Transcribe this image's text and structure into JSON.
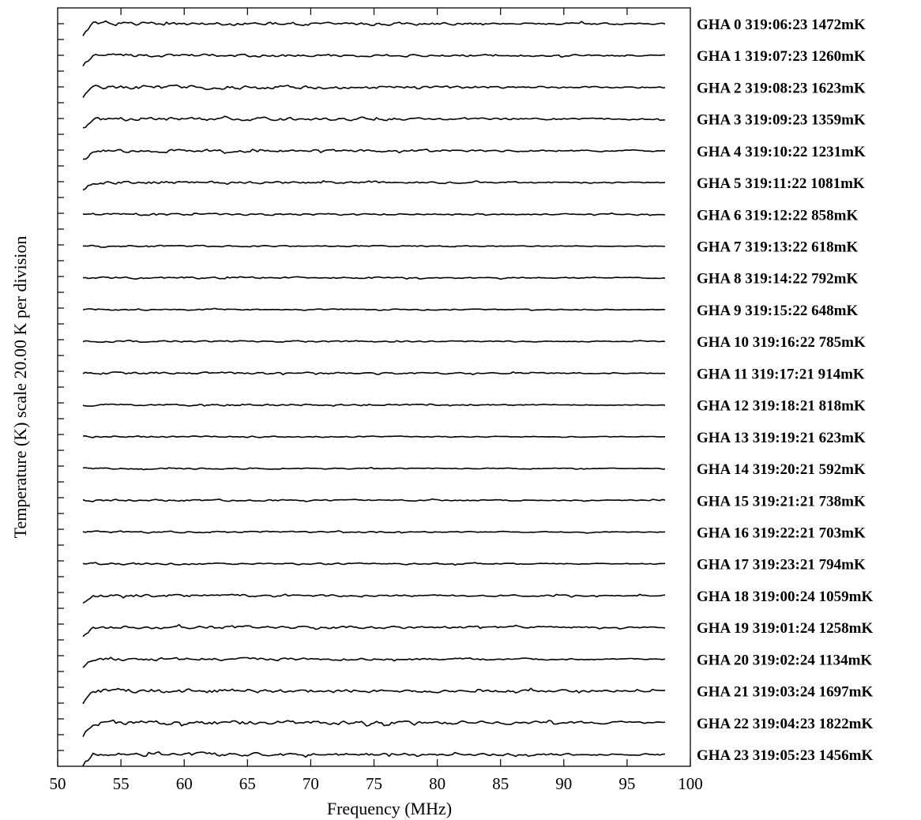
{
  "chart_data": {
    "type": "line",
    "xlabel": "Frequency (MHz)",
    "ylabel": "Temperature (K) scale  20.00 K per division",
    "xlim": [
      50,
      100
    ],
    "x_ticks": [
      50,
      55,
      60,
      65,
      70,
      75,
      80,
      85,
      90,
      95,
      100
    ],
    "x_tick_labels": [
      "50",
      "55",
      "60",
      "65",
      "70",
      "75",
      "80",
      "85",
      "90",
      "95",
      "100"
    ],
    "data_x_range": [
      52,
      98
    ],
    "y_scale_per_division_K": 20.0,
    "y_axis_tick_divisions": 48,
    "grid": false,
    "legend": "none",
    "series": [
      {
        "label": "GHA  0 319:06:23 1472mK",
        "gha": 0,
        "rms_mK": 1472
      },
      {
        "label": "GHA  1 319:07:23 1260mK",
        "gha": 1,
        "rms_mK": 1260
      },
      {
        "label": "GHA  2 319:08:23 1623mK",
        "gha": 2,
        "rms_mK": 1623
      },
      {
        "label": "GHA  3 319:09:23 1359mK",
        "gha": 3,
        "rms_mK": 1359
      },
      {
        "label": "GHA  4 319:10:22 1231mK",
        "gha": 4,
        "rms_mK": 1231
      },
      {
        "label": "GHA  5 319:11:22 1081mK",
        "gha": 5,
        "rms_mK": 1081
      },
      {
        "label": "GHA  6 319:12:22  858mK",
        "gha": 6,
        "rms_mK": 858
      },
      {
        "label": "GHA  7 319:13:22  618mK",
        "gha": 7,
        "rms_mK": 618
      },
      {
        "label": "GHA  8 319:14:22  792mK",
        "gha": 8,
        "rms_mK": 792
      },
      {
        "label": "GHA  9 319:15:22  648mK",
        "gha": 9,
        "rms_mK": 648
      },
      {
        "label": "GHA 10 319:16:22  785mK",
        "gha": 10,
        "rms_mK": 785
      },
      {
        "label": "GHA 11 319:17:21  914mK",
        "gha": 11,
        "rms_mK": 914
      },
      {
        "label": "GHA 12 319:18:21  818mK",
        "gha": 12,
        "rms_mK": 818
      },
      {
        "label": "GHA 13 319:19:21  623mK",
        "gha": 13,
        "rms_mK": 623
      },
      {
        "label": "GHA 14 319:20:21  592mK",
        "gha": 14,
        "rms_mK": 592
      },
      {
        "label": "GHA 15 319:21:21  738mK",
        "gha": 15,
        "rms_mK": 738
      },
      {
        "label": "GHA 16 319:22:21  703mK",
        "gha": 16,
        "rms_mK": 703
      },
      {
        "label": "GHA 17 319:23:21  794mK",
        "gha": 17,
        "rms_mK": 794
      },
      {
        "label": "GHA 18 319:00:24 1059mK",
        "gha": 18,
        "rms_mK": 1059
      },
      {
        "label": "GHA 19 319:01:24 1258mK",
        "gha": 19,
        "rms_mK": 1258
      },
      {
        "label": "GHA 20 319:02:24 1134mK",
        "gha": 20,
        "rms_mK": 1134
      },
      {
        "label": "GHA 21 319:03:24 1697mK",
        "gha": 21,
        "rms_mK": 1697
      },
      {
        "label": "GHA 22 319:04:23 1822mK",
        "gha": 22,
        "rms_mK": 1822
      },
      {
        "label": "GHA 23 319:05:23 1456mK",
        "gha": 23,
        "rms_mK": 1456
      }
    ]
  }
}
